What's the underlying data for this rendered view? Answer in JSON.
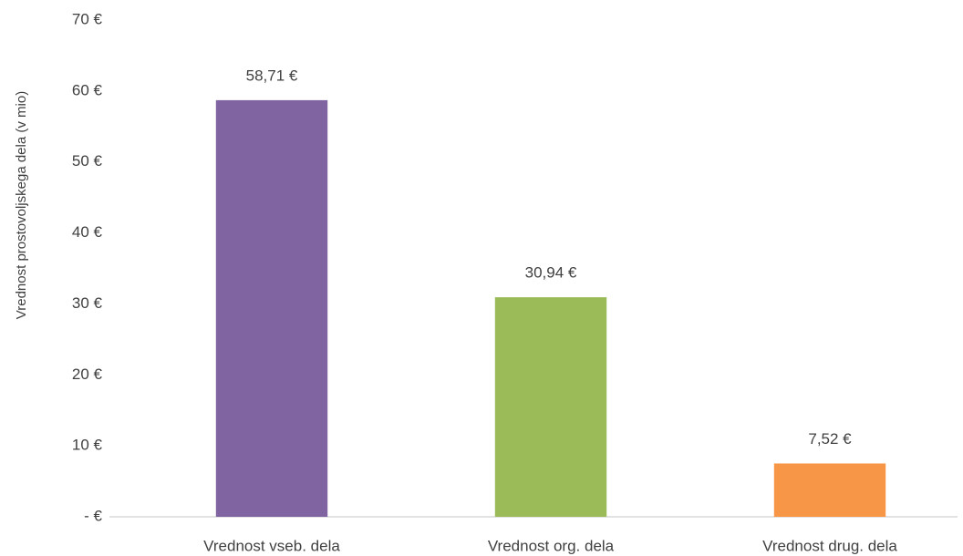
{
  "chart_data": {
    "type": "bar",
    "y_label": "Vrednost prostovoljskega dela (v mio)",
    "categories": [
      "Vrednost vseb. dela",
      "Vrednost org. dela",
      "Vrednost drug. dela"
    ],
    "values": [
      58.71,
      30.94,
      7.52
    ],
    "value_labels": [
      "58,71 €",
      "30,94 €",
      "7,52 €"
    ],
    "colors": [
      "#8064a2",
      "#9bbb59",
      "#f79646"
    ],
    "ylim": [
      0,
      70
    ],
    "yticks": [
      {
        "value": 0,
        "label": "- €"
      },
      {
        "value": 10,
        "label": "10 €"
      },
      {
        "value": 20,
        "label": "20 €"
      },
      {
        "value": 30,
        "label": "30 €"
      },
      {
        "value": 40,
        "label": "40 €"
      },
      {
        "value": 50,
        "label": "50 €"
      },
      {
        "value": 60,
        "label": "60 €"
      },
      {
        "value": 70,
        "label": "70 €"
      }
    ],
    "grid": false
  }
}
